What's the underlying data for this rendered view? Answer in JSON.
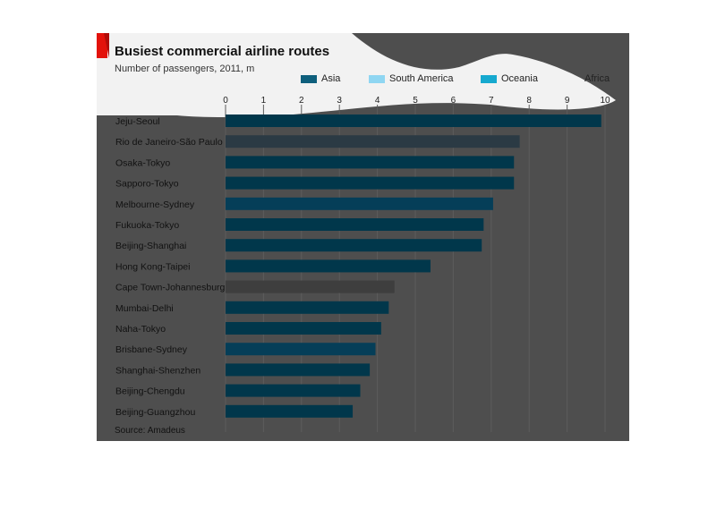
{
  "colors": {
    "panel": "#4e4e4e",
    "title_area": "#f2f2f2",
    "Asia": "#01374b",
    "South America": "#2b3a44",
    "Oceania": "#053e58",
    "Africa": "#3e3e3e",
    "accent": "#e3120b"
  },
  "chart_data": {
    "type": "bar",
    "orientation": "horizontal",
    "title": "Busiest commercial airline routes",
    "subtitle": "Number of passengers, 2011, m",
    "source": "Source: Amadeus",
    "xlim": [
      0,
      10
    ],
    "x_ticks": [
      "0",
      "1",
      "2",
      "3",
      "4",
      "5",
      "6",
      "7",
      "8",
      "9",
      "10"
    ],
    "grid": true,
    "legend_position": "top",
    "legend": [
      {
        "name": "Asia",
        "color": "#0e5f7c"
      },
      {
        "name": "South America",
        "color": "#8fd6f2"
      },
      {
        "name": "Oceania",
        "color": "#16a9cf"
      },
      {
        "name": "Africa",
        "color": "#4e4e4e"
      }
    ],
    "categories": [
      "Jeju-Seoul",
      "Rio de Janeiro-São Paulo",
      "Osaka-Tokyo",
      "Sapporo-Tokyo",
      "Melbourne-Sydney",
      "Fukuoka-Tokyo",
      "Beijing-Shanghai",
      "Hong Kong-Taipei",
      "Cape Town-Johannesburg",
      "Mumbai-Delhi",
      "Naha-Tokyo",
      "Brisbane-Sydney",
      "Shanghai-Shenzhen",
      "Beijing-Chengdu",
      "Beijing-Guangzhou"
    ],
    "regions": [
      "Asia",
      "South America",
      "Asia",
      "Asia",
      "Oceania",
      "Asia",
      "Asia",
      "Asia",
      "Africa",
      "Asia",
      "Asia",
      "Oceania",
      "Asia",
      "Asia",
      "Asia"
    ],
    "values": [
      9.9,
      7.75,
      7.6,
      7.6,
      7.05,
      6.8,
      6.75,
      5.4,
      4.45,
      4.3,
      4.1,
      3.95,
      3.8,
      3.55,
      3.35
    ]
  }
}
